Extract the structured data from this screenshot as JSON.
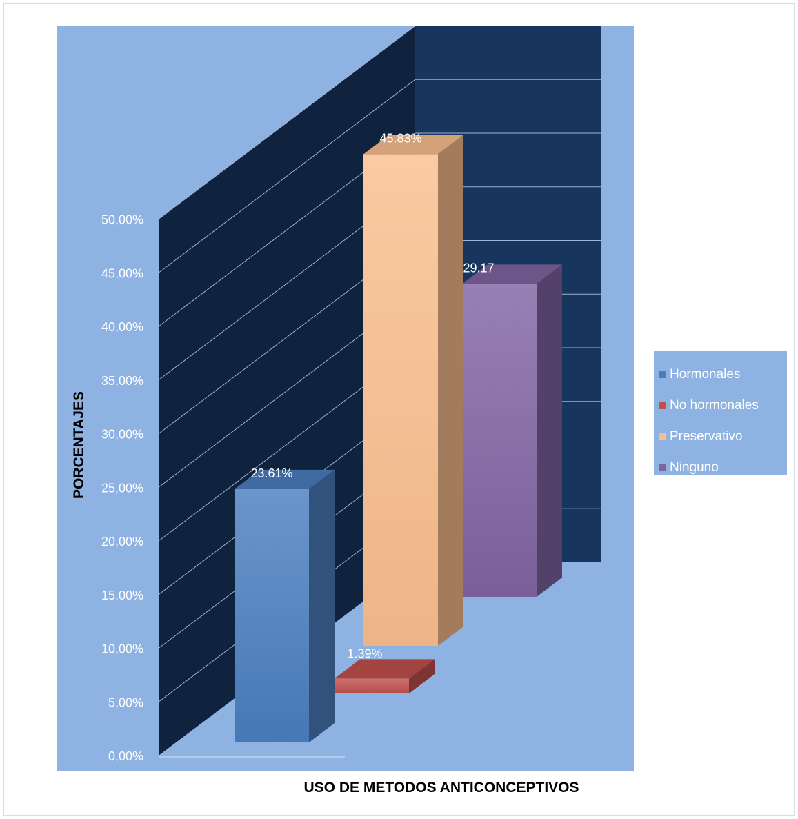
{
  "chart_data": {
    "type": "bar",
    "title": "",
    "xlabel": "USO DE METODOS  ANTICONCEPTIVOS",
    "ylabel": "PORCENTAJES",
    "ylim": [
      0,
      50
    ],
    "yticks": [
      "0,00%",
      "5,00%",
      "10,00%",
      "15,00%",
      "20,00%",
      "25,00%",
      "30,00%",
      "35,00%",
      "40,00%",
      "45,00%",
      "50,00%"
    ],
    "grid": true,
    "legend_position": "right",
    "series": [
      {
        "name": "Hormonales",
        "value": 23.61,
        "data_label": "23.61%",
        "color": "#4a7ebf"
      },
      {
        "name": "No hormonales",
        "value": 1.39,
        "data_label": "1.39%",
        "color": "#c0504d"
      },
      {
        "name": "Preservativo",
        "value": 45.83,
        "data_label": "45.83%",
        "color": "#f9be8e"
      },
      {
        "name": "Ninguno",
        "value": 29.17,
        "data_label": "29.17",
        "color": "#8064a2"
      }
    ]
  },
  "colors": {
    "plot_area_background": "#8eb2e2",
    "side_wall": "#0f223e",
    "back_wall": "#17355d",
    "grid_line": "#9fb4d4",
    "axis_text": "#ffffff"
  }
}
